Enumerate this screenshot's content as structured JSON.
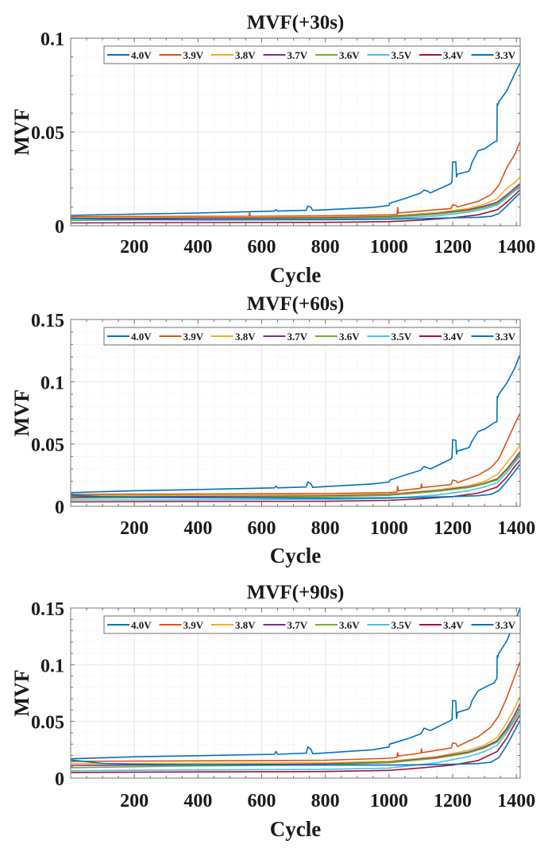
{
  "figure": {
    "description": "Three stacked MATLAB-style line plots of MVF versus Cycle for eight voltage levels"
  },
  "chart_data": [
    {
      "type": "line",
      "title": "MVF(+30s)",
      "xlabel": "Cycle",
      "ylabel": "MVF",
      "xlim": [
        0,
        1412
      ],
      "ylim": [
        0,
        0.1
      ],
      "xticks": [
        200,
        400,
        600,
        800,
        1000,
        1200,
        1400
      ],
      "xtick_labels": [
        "200",
        "400",
        "600",
        "800",
        "1000",
        "1200",
        "1400"
      ],
      "yticks": [
        0,
        0.05,
        0.1
      ],
      "ytick_labels": [
        "0",
        "0.05",
        "0.1"
      ],
      "grid": true,
      "minor_grid": true,
      "legend": {
        "placement": "top",
        "orientation": "horizontal"
      },
      "series": [
        {
          "name": "4.0V",
          "color": "#0072BD",
          "x": [
            0,
            200,
            400,
            640,
            645,
            650,
            740,
            745,
            755,
            760,
            800,
            950,
            1000,
            1002,
            1050,
            1100,
            1110,
            1120,
            1130,
            1195,
            1198,
            1200,
            1210,
            1212,
            1215,
            1250,
            1255,
            1260,
            1280,
            1300,
            1330,
            1339,
            1340,
            1341,
            1345,
            1370,
            1395,
            1412
          ],
          "y": [
            0.0055,
            0.0062,
            0.0068,
            0.0078,
            0.0085,
            0.0078,
            0.0082,
            0.0105,
            0.0098,
            0.0082,
            0.0085,
            0.0098,
            0.0108,
            0.012,
            0.0145,
            0.0175,
            0.019,
            0.0185,
            0.0175,
            0.0225,
            0.0235,
            0.034,
            0.034,
            0.026,
            0.0275,
            0.029,
            0.0305,
            0.0335,
            0.04,
            0.041,
            0.0445,
            0.045,
            0.065,
            0.064,
            0.066,
            0.072,
            0.081,
            0.087
          ]
        },
        {
          "name": "3.9V",
          "color": "#D95319",
          "x": [
            0,
            400,
            560,
            562,
            564,
            800,
            1000,
            1025,
            1027,
            1029,
            1100,
            1195,
            1200,
            1210,
            1215,
            1280,
            1320,
            1345,
            1370,
            1395,
            1412
          ],
          "y": [
            0.0048,
            0.005,
            0.005,
            0.0075,
            0.005,
            0.0053,
            0.0058,
            0.006,
            0.0098,
            0.0068,
            0.0078,
            0.0092,
            0.0112,
            0.0108,
            0.01,
            0.013,
            0.0165,
            0.0215,
            0.031,
            0.038,
            0.045
          ]
        },
        {
          "name": "3.8V",
          "color": "#EDB120",
          "x": [
            0,
            400,
            800,
            1000,
            1150,
            1250,
            1300,
            1340,
            1345,
            1370,
            1395,
            1412
          ],
          "y": [
            0.0042,
            0.0045,
            0.0047,
            0.0052,
            0.007,
            0.0092,
            0.0115,
            0.0145,
            0.0155,
            0.02,
            0.023,
            0.026
          ]
        },
        {
          "name": "3.7V",
          "color": "#7E2F8E",
          "x": [
            0,
            400,
            800,
            1000,
            1150,
            1250,
            1300,
            1340,
            1370,
            1395,
            1412
          ],
          "y": [
            0.0038,
            0.004,
            0.0042,
            0.0048,
            0.0065,
            0.0085,
            0.0105,
            0.0125,
            0.0165,
            0.02,
            0.0225
          ]
        },
        {
          "name": "3.6V",
          "color": "#77AC30",
          "x": [
            0,
            400,
            800,
            1000,
            1150,
            1250,
            1300,
            1340,
            1370,
            1395,
            1412
          ],
          "y": [
            0.0028,
            0.0033,
            0.0038,
            0.0045,
            0.0062,
            0.008,
            0.0098,
            0.0118,
            0.0158,
            0.0193,
            0.0215
          ]
        },
        {
          "name": "3.5V",
          "color": "#4DBEEE",
          "x": [
            0,
            400,
            800,
            1000,
            1150,
            1250,
            1300,
            1340,
            1370,
            1395,
            1412
          ],
          "y": [
            0.0032,
            0.0032,
            0.0034,
            0.0038,
            0.0052,
            0.0072,
            0.009,
            0.011,
            0.015,
            0.0185,
            0.0205
          ]
        },
        {
          "name": "3.4V",
          "color": "#A2142F",
          "x": [
            0,
            400,
            800,
            1000,
            1100,
            1200,
            1280,
            1340,
            1370,
            1395,
            1412
          ],
          "y": [
            0.0015,
            0.0017,
            0.0018,
            0.0022,
            0.003,
            0.0042,
            0.0058,
            0.0085,
            0.0125,
            0.0165,
            0.0192
          ]
        },
        {
          "name": "3.3V",
          "color": "#0072BD",
          "x": [
            0,
            100,
            400,
            800,
            1000,
            1100,
            1200,
            1280,
            1320,
            1345,
            1370,
            1395,
            1412
          ],
          "y": [
            0.004,
            0.0035,
            0.0031,
            0.0032,
            0.0035,
            0.0038,
            0.0042,
            0.0045,
            0.005,
            0.0065,
            0.0105,
            0.0148,
            0.0175
          ]
        }
      ]
    },
    {
      "type": "line",
      "title": "MVF(+60s)",
      "xlabel": "Cycle",
      "ylabel": "MVF",
      "xlim": [
        0,
        1412
      ],
      "ylim": [
        0,
        0.15
      ],
      "xticks": [
        200,
        400,
        600,
        800,
        1000,
        1200,
        1400
      ],
      "xtick_labels": [
        "200",
        "400",
        "600",
        "800",
        "1000",
        "1200",
        "1400"
      ],
      "yticks": [
        0,
        0.05,
        0.1,
        0.15
      ],
      "ytick_labels": [
        "0",
        "0.05",
        "0.1",
        "0.15"
      ],
      "grid": true,
      "minor_grid": true,
      "legend": {
        "placement": "top",
        "orientation": "horizontal"
      },
      "series": [
        {
          "name": "4.0V",
          "color": "#0072BD",
          "x": [
            0,
            200,
            400,
            640,
            645,
            650,
            740,
            745,
            755,
            760,
            800,
            950,
            1000,
            1002,
            1050,
            1100,
            1110,
            1120,
            1130,
            1195,
            1198,
            1200,
            1210,
            1212,
            1215,
            1250,
            1255,
            1260,
            1280,
            1300,
            1330,
            1339,
            1340,
            1341,
            1345,
            1370,
            1395,
            1412
          ],
          "y": [
            0.011,
            0.0125,
            0.0135,
            0.0148,
            0.0162,
            0.0148,
            0.0155,
            0.0195,
            0.018,
            0.0152,
            0.0158,
            0.018,
            0.0195,
            0.021,
            0.025,
            0.029,
            0.032,
            0.031,
            0.03,
            0.038,
            0.04,
            0.0535,
            0.053,
            0.042,
            0.0445,
            0.047,
            0.049,
            0.052,
            0.06,
            0.062,
            0.067,
            0.068,
            0.088,
            0.087,
            0.09,
            0.099,
            0.111,
            0.122
          ]
        },
        {
          "name": "3.9V",
          "color": "#D95319",
          "x": [
            0,
            400,
            800,
            1000,
            1025,
            1027,
            1029,
            1100,
            1102,
            1104,
            1195,
            1200,
            1210,
            1215,
            1280,
            1320,
            1345,
            1370,
            1395,
            1412
          ],
          "y": [
            0.0095,
            0.0098,
            0.0102,
            0.011,
            0.0115,
            0.016,
            0.0125,
            0.0145,
            0.018,
            0.015,
            0.0175,
            0.021,
            0.0205,
            0.019,
            0.025,
            0.031,
            0.038,
            0.052,
            0.066,
            0.075
          ]
        },
        {
          "name": "3.8V",
          "color": "#EDB120",
          "x": [
            0,
            400,
            800,
            1000,
            1150,
            1250,
            1300,
            1340,
            1345,
            1370,
            1395,
            1412
          ],
          "y": [
            0.0085,
            0.0088,
            0.009,
            0.0098,
            0.013,
            0.0165,
            0.02,
            0.0255,
            0.027,
            0.035,
            0.043,
            0.0495
          ]
        },
        {
          "name": "3.7V",
          "color": "#7E2F8E",
          "x": [
            0,
            400,
            800,
            1000,
            1150,
            1250,
            1300,
            1340,
            1370,
            1395,
            1412
          ],
          "y": [
            0.0075,
            0.0078,
            0.0082,
            0.0092,
            0.0125,
            0.0155,
            0.0185,
            0.022,
            0.03,
            0.038,
            0.044
          ]
        },
        {
          "name": "3.6V",
          "color": "#77AC30",
          "x": [
            0,
            400,
            800,
            1000,
            1150,
            1250,
            1300,
            1340,
            1370,
            1395,
            1412
          ],
          "y": [
            0.0065,
            0.007,
            0.0077,
            0.0088,
            0.012,
            0.015,
            0.018,
            0.0212,
            0.029,
            0.0365,
            0.042
          ]
        },
        {
          "name": "3.5V",
          "color": "#4DBEEE",
          "x": [
            0,
            400,
            800,
            1000,
            1150,
            1250,
            1300,
            1340,
            1370,
            1395,
            1412
          ],
          "y": [
            0.005,
            0.0052,
            0.0056,
            0.0064,
            0.009,
            0.0125,
            0.0155,
            0.019,
            0.027,
            0.035,
            0.04
          ]
        },
        {
          "name": "3.4V",
          "color": "#A2142F",
          "x": [
            0,
            400,
            800,
            1000,
            1100,
            1200,
            1280,
            1340,
            1370,
            1395,
            1412
          ],
          "y": [
            0.0035,
            0.0038,
            0.004,
            0.0048,
            0.006,
            0.0078,
            0.0105,
            0.0155,
            0.0235,
            0.032,
            0.037
          ]
        },
        {
          "name": "3.3V",
          "color": "#0072BD",
          "x": [
            0,
            100,
            400,
            800,
            1000,
            1100,
            1200,
            1280,
            1320,
            1345,
            1370,
            1395,
            1412
          ],
          "y": [
            0.009,
            0.0078,
            0.0068,
            0.0065,
            0.0068,
            0.0072,
            0.0078,
            0.0085,
            0.0095,
            0.0125,
            0.02,
            0.028,
            0.034
          ]
        }
      ]
    },
    {
      "type": "line",
      "title": "MVF(+90s)",
      "xlabel": "Cycle",
      "ylabel": "MVF",
      "xlim": [
        0,
        1412
      ],
      "ylim": [
        0,
        0.15
      ],
      "xticks": [
        200,
        400,
        600,
        800,
        1000,
        1200,
        1400
      ],
      "xtick_labels": [
        "200",
        "400",
        "600",
        "800",
        "1000",
        "1200",
        "1400"
      ],
      "yticks": [
        0,
        0.05,
        0.1,
        0.15
      ],
      "ytick_labels": [
        "0",
        "0.05",
        "0.1",
        "0.15"
      ],
      "grid": true,
      "minor_grid": true,
      "legend": {
        "placement": "top",
        "orientation": "horizontal"
      },
      "series": [
        {
          "name": "4.0V",
          "color": "#0072BD",
          "x": [
            0,
            200,
            400,
            640,
            645,
            650,
            740,
            745,
            755,
            760,
            800,
            950,
            1000,
            1002,
            1050,
            1100,
            1110,
            1120,
            1130,
            1195,
            1198,
            1200,
            1210,
            1212,
            1215,
            1250,
            1255,
            1260,
            1280,
            1300,
            1330,
            1339,
            1340,
            1341,
            1345,
            1370,
            1395,
            1412
          ],
          "y": [
            0.017,
            0.0188,
            0.0198,
            0.021,
            0.0235,
            0.021,
            0.022,
            0.0275,
            0.0255,
            0.0215,
            0.0222,
            0.025,
            0.0275,
            0.03,
            0.034,
            0.039,
            0.044,
            0.043,
            0.042,
            0.051,
            0.052,
            0.0685,
            0.068,
            0.0525,
            0.058,
            0.061,
            0.063,
            0.068,
            0.077,
            0.08,
            0.084,
            0.088,
            0.108,
            0.106,
            0.11,
            0.121,
            0.138,
            0.15
          ]
        },
        {
          "name": "3.9V",
          "color": "#D95319",
          "x": [
            0,
            400,
            800,
            1000,
            1025,
            1027,
            1029,
            1100,
            1102,
            1104,
            1195,
            1200,
            1210,
            1215,
            1280,
            1320,
            1345,
            1370,
            1395,
            1412
          ],
          "y": [
            0.0148,
            0.0152,
            0.0158,
            0.0175,
            0.0182,
            0.0225,
            0.0195,
            0.022,
            0.0258,
            0.0225,
            0.0265,
            0.031,
            0.0305,
            0.028,
            0.0365,
            0.045,
            0.055,
            0.071,
            0.09,
            0.103
          ]
        },
        {
          "name": "3.8V",
          "color": "#EDB120",
          "x": [
            0,
            400,
            800,
            1000,
            1150,
            1250,
            1300,
            1340,
            1345,
            1370,
            1395,
            1412
          ],
          "y": [
            0.0128,
            0.013,
            0.0135,
            0.0148,
            0.019,
            0.0245,
            0.029,
            0.036,
            0.038,
            0.049,
            0.062,
            0.072
          ]
        },
        {
          "name": "3.7V",
          "color": "#7E2F8E",
          "x": [
            0,
            400,
            800,
            1000,
            1150,
            1250,
            1300,
            1340,
            1370,
            1395,
            1412
          ],
          "y": [
            0.0112,
            0.0118,
            0.0125,
            0.014,
            0.0182,
            0.023,
            0.0275,
            0.033,
            0.044,
            0.056,
            0.066
          ]
        },
        {
          "name": "3.6V",
          "color": "#77AC30",
          "x": [
            0,
            400,
            800,
            1000,
            1150,
            1250,
            1300,
            1340,
            1370,
            1395,
            1412
          ],
          "y": [
            0.0092,
            0.0108,
            0.0118,
            0.0135,
            0.0175,
            0.0222,
            0.0265,
            0.0318,
            0.042,
            0.053,
            0.062
          ]
        },
        {
          "name": "3.5V",
          "color": "#4DBEEE",
          "x": [
            0,
            400,
            800,
            1000,
            1150,
            1250,
            1300,
            1340,
            1370,
            1395,
            1412
          ],
          "y": [
            0.0065,
            0.0072,
            0.0078,
            0.0088,
            0.0135,
            0.019,
            0.0235,
            0.029,
            0.04,
            0.051,
            0.059
          ]
        },
        {
          "name": "3.4V",
          "color": "#A2142F",
          "x": [
            0,
            400,
            800,
            1000,
            1100,
            1200,
            1280,
            1340,
            1370,
            1395,
            1412
          ],
          "y": [
            0.005,
            0.0055,
            0.0058,
            0.0068,
            0.009,
            0.0115,
            0.0155,
            0.0235,
            0.0355,
            0.048,
            0.056
          ]
        },
        {
          "name": "3.3V",
          "color": "#0072BD",
          "x": [
            0,
            100,
            200,
            400,
            800,
            1000,
            1100,
            1200,
            1280,
            1320,
            1345,
            1370,
            1395,
            1412
          ],
          "y": [
            0.016,
            0.013,
            0.0122,
            0.0118,
            0.0115,
            0.0115,
            0.0118,
            0.0122,
            0.0128,
            0.014,
            0.018,
            0.029,
            0.042,
            0.051
          ]
        }
      ]
    }
  ]
}
